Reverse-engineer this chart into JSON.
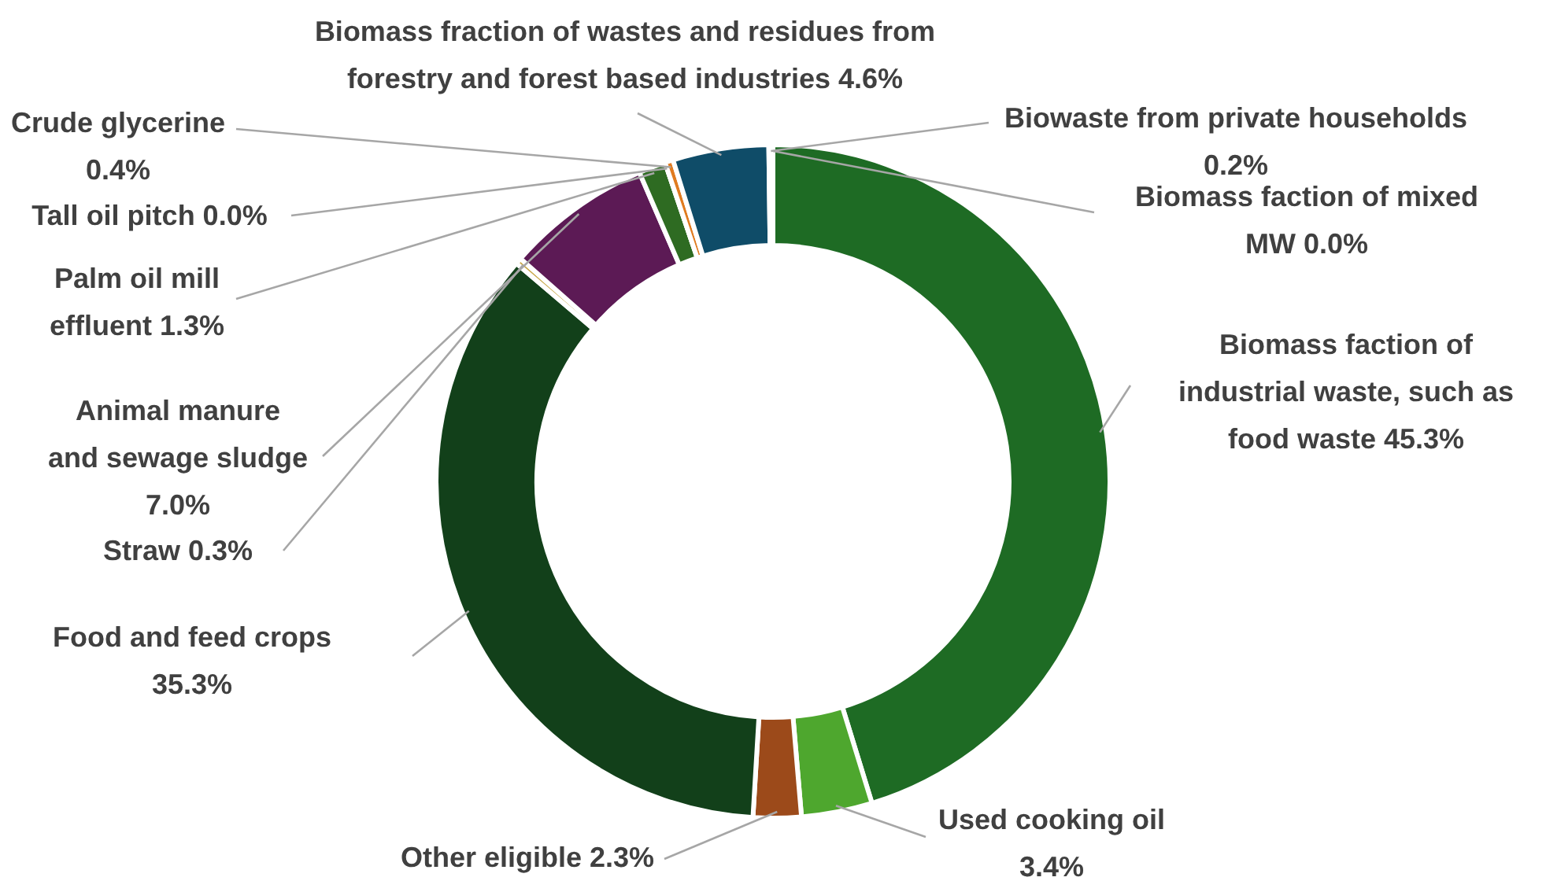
{
  "chart_data": {
    "type": "donut",
    "categories": [
      "Biomass faction of industrial waste, such as food waste",
      "Used cooking oil",
      "Other eligible ",
      "Food and feed crops",
      "Straw",
      "Animal manure and sewage sludge",
      "Palm oil mill effluent",
      "Tall oil pitch",
      "Crude glycerine",
      "Biomass fraction of wastes and residues from forestry and forest based industries",
      "Biowaste from private households",
      "Biomass faction of mixed MW"
    ],
    "values": [
      45.3,
      3.4,
      2.3,
      35.3,
      0.3,
      7.0,
      1.3,
      0.0,
      0.4,
      4.6,
      0.2,
      0.0
    ],
    "value_labels": [
      "45.3%",
      "3.4%",
      "2.3%",
      "35.3%",
      "0.3%",
      "7.0%",
      "1.3%",
      "0.0%",
      "0.4%",
      "4.6%",
      "0.2%",
      "0.0%"
    ],
    "colors": [
      "#1e6b24",
      "#4ea72e",
      "#9c4a1a",
      "#12401a",
      "#c8a848",
      "#5c1a55",
      "#2e6b22",
      "#808080",
      "#e07b20",
      "#0f4c68",
      "#d9a040",
      "#606060"
    ],
    "legend": false
  }
}
